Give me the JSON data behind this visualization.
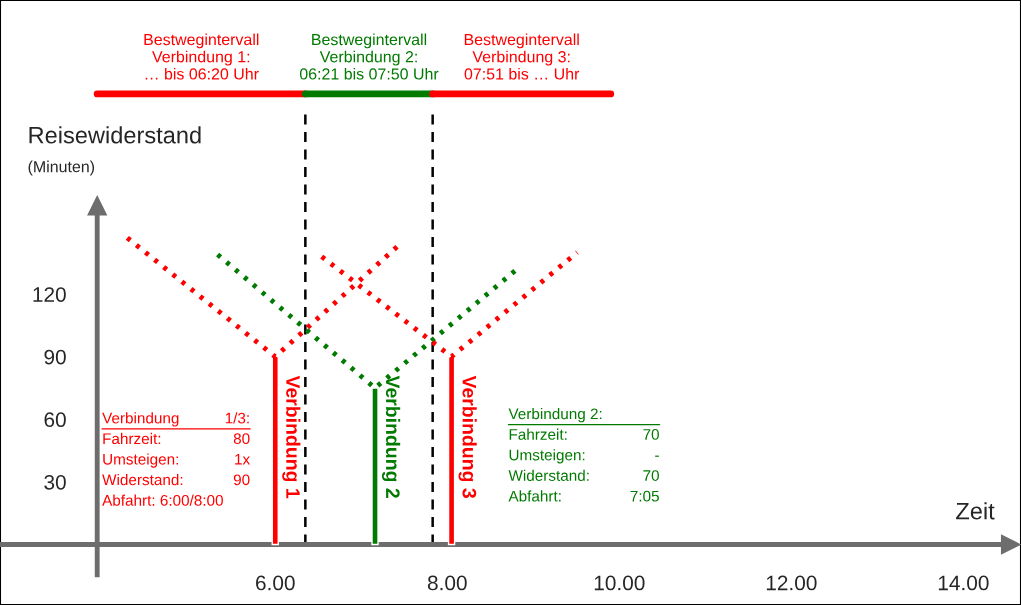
{
  "chart_data": {
    "type": "bar",
    "xlabel": "Zeit",
    "ylabel": "Reisewiderstand",
    "xlim": [
      2.8,
      14.67
    ],
    "ylim": [
      -29,
      261
    ],
    "xticks": [
      {
        "value": 6,
        "label": "6.00"
      },
      {
        "value": 8,
        "label": "8.00"
      },
      {
        "value": 10,
        "label": "10.00"
      },
      {
        "value": 12,
        "label": "12.00"
      },
      {
        "value": 14,
        "label": "14.00"
      }
    ],
    "yticks": [
      30,
      60,
      90,
      120
    ],
    "series": [
      {
        "name": "Verbindung 1",
        "x": [
          6.0
        ],
        "values": [
          90
        ],
        "color": "#ff0000"
      },
      {
        "name": "Verbindung 2",
        "x": [
          7.16
        ],
        "values": [
          75
        ],
        "color": "#007a00"
      },
      {
        "name": "Verbindung 3",
        "x": [
          8.05
        ],
        "values": [
          90
        ],
        "color": "#ff0000"
      },
      {
        "type": "line",
        "line_style": "dotted",
        "x": [
          4.28,
          6.0,
          7.45
        ],
        "values": [
          147,
          90,
          144
        ],
        "color": "#ff0000"
      },
      {
        "type": "line",
        "line_style": "dotted",
        "x": [
          5.33,
          7.16,
          8.81
        ],
        "values": [
          139,
          75,
          132
        ],
        "color": "#007a00"
      },
      {
        "type": "line",
        "line_style": "dotted",
        "x": [
          6.54,
          8.05,
          9.51
        ],
        "values": [
          138,
          90,
          140
        ],
        "color": "#ff0000"
      },
      {
        "name": "Bestwegintervall\nVerbindung 1:\n… bis 06:20 Uhr",
        "type": "line",
        "line_style": "solid",
        "x": [
          3.93,
          6.35
        ],
        "values": [
          216,
          216
        ],
        "color": "#ff0000"
      },
      {
        "name": "Bestwegintervall\nVerbindung 2:\n06:21 bis 07:50 Uhr",
        "type": "line",
        "line_style": "solid",
        "x": [
          6.35,
          7.83
        ],
        "values": [
          216,
          216
        ],
        "color": "#007a00"
      },
      {
        "name": "Bestwegintervall\nVerbindung 3:\n07:51 bis … Uhr",
        "type": "line",
        "line_style": "solid",
        "x": [
          7.83,
          9.9
        ],
        "values": [
          216,
          216
        ],
        "color": "#ff0000"
      }
    ],
    "ref_lines": [
      {
        "axis": "x",
        "value": 6.35,
        "color": "#000000",
        "line_style": "dashed"
      },
      {
        "axis": "x",
        "value": 7.83,
        "color": "#000000",
        "line_style": "dashed"
      }
    ],
    "annotations": [
      "Verbindung\t1/3:\nFahrzeit:\t80\nUmsteigen:\t1x\nWiderstand:\t90\nAbfahrt: 6:00/8:00",
      "Verbindung 2:\nFahrzeit:\t70\nUmsteigen:\t-\nWiderstand:\t70\nAbfahrt:\t7:05",
      "(Minuten)"
    ],
    "grid": false,
    "legend": false
  }
}
